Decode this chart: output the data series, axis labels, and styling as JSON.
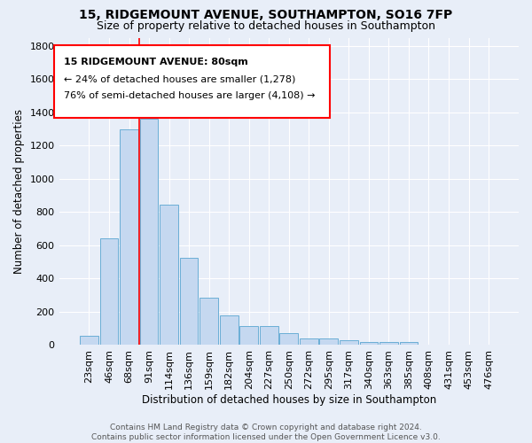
{
  "title": "15, RIDGEMOUNT AVENUE, SOUTHAMPTON, SO16 7FP",
  "subtitle": "Size of property relative to detached houses in Southampton",
  "xlabel": "Distribution of detached houses by size in Southampton",
  "ylabel": "Number of detached properties",
  "categories": [
    "23sqm",
    "46sqm",
    "68sqm",
    "91sqm",
    "114sqm",
    "136sqm",
    "159sqm",
    "182sqm",
    "204sqm",
    "227sqm",
    "250sqm",
    "272sqm",
    "295sqm",
    "317sqm",
    "340sqm",
    "363sqm",
    "385sqm",
    "408sqm",
    "431sqm",
    "453sqm",
    "476sqm"
  ],
  "values": [
    55,
    640,
    1300,
    1360,
    845,
    525,
    285,
    175,
    110,
    110,
    70,
    35,
    35,
    25,
    15,
    15,
    15,
    0,
    0,
    0,
    0
  ],
  "bar_color": "#c5d8f0",
  "bar_edge_color": "#6aaed6",
  "background_color": "#e8eef8",
  "grid_color": "#ffffff",
  "red_line_x": 2.5,
  "annotation_lines": [
    "15 RIDGEMOUNT AVENUE: 80sqm",
    "← 24% of detached houses are smaller (1,278)",
    "76% of semi-detached houses are larger (4,108) →"
  ],
  "footer": "Contains HM Land Registry data © Crown copyright and database right 2024.\nContains public sector information licensed under the Open Government Licence v3.0.",
  "ylim": [
    0,
    1850
  ],
  "yticks": [
    0,
    200,
    400,
    600,
    800,
    1000,
    1200,
    1400,
    1600,
    1800
  ],
  "title_fontsize": 10,
  "subtitle_fontsize": 9,
  "axis_label_fontsize": 8.5,
  "tick_fontsize": 8,
  "annotation_fontsize": 8,
  "footer_fontsize": 6.5
}
